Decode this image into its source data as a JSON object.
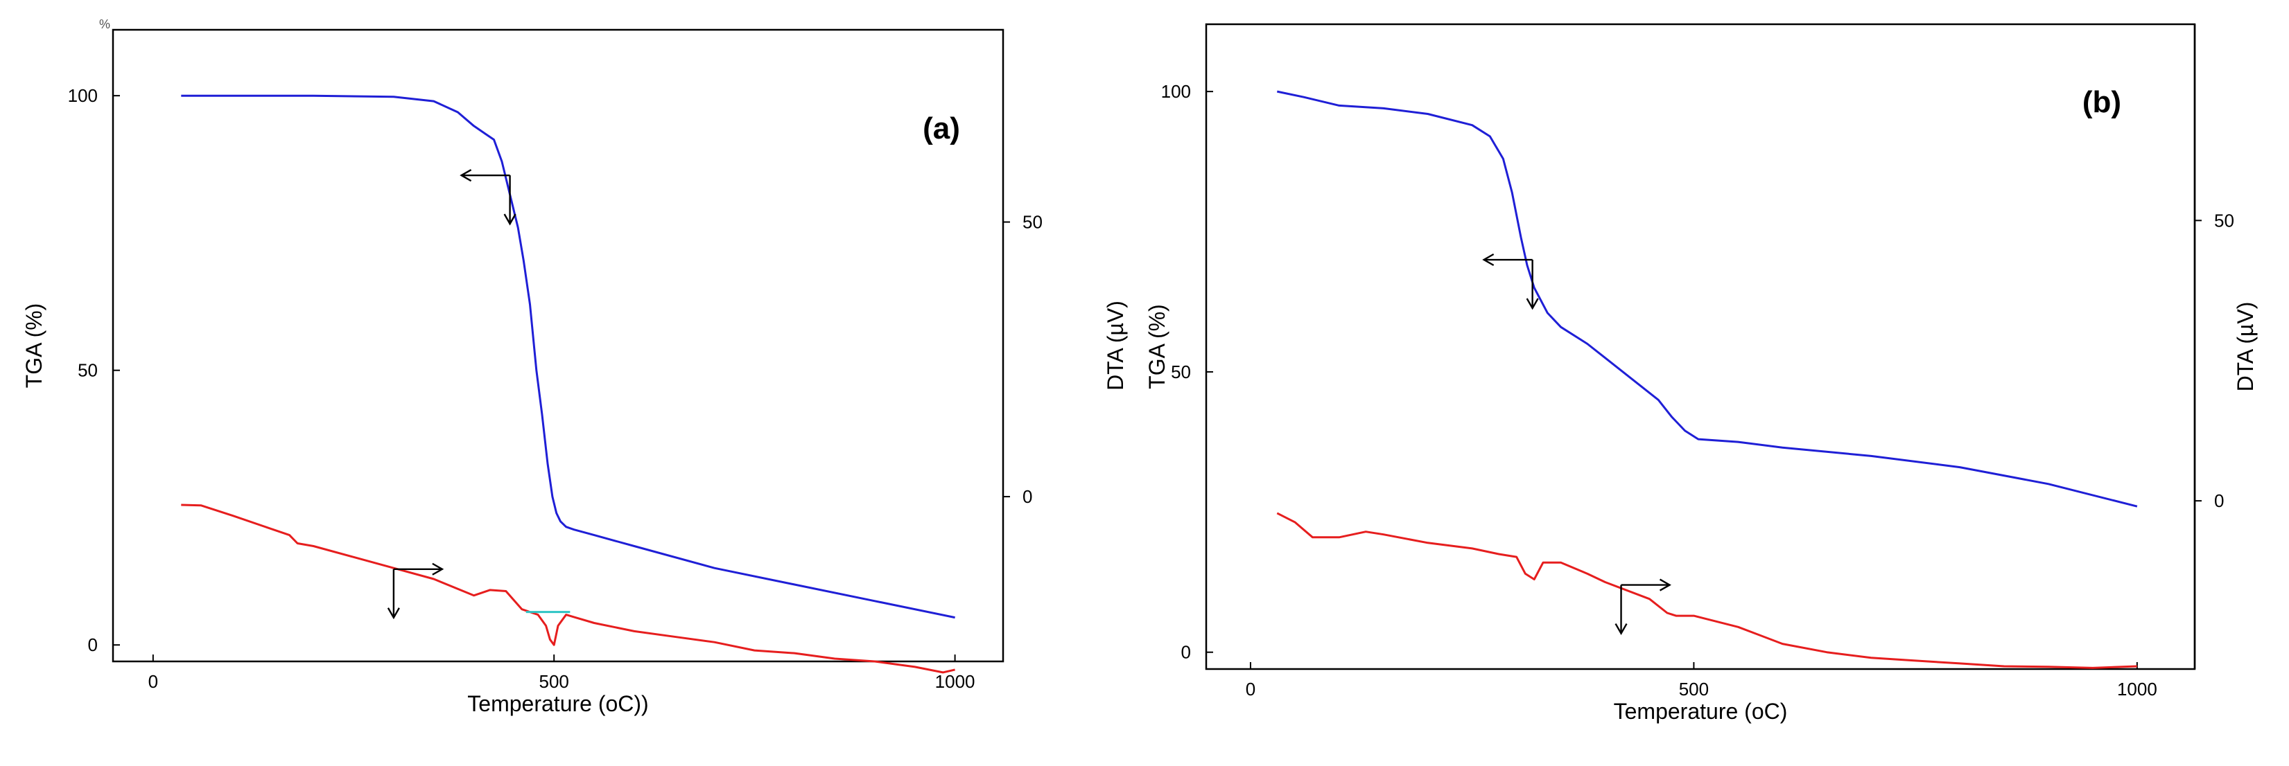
{
  "chart_data": [
    {
      "type": "line",
      "panel_label": "(a)",
      "xlabel": "Temperature (oC))",
      "ylabel": "TGA (%)",
      "y2label": "DTA (µV)",
      "top_left_mark": "%",
      "xlim": [
        -50,
        1060
      ],
      "ylim": [
        -3,
        112
      ],
      "y2lim": [
        -30,
        85
      ],
      "xticks": [
        0,
        500,
        1000
      ],
      "yticks": [
        0,
        50,
        100
      ],
      "y2ticks": [
        0,
        50
      ],
      "legend": "none",
      "grid": false,
      "series": [
        {
          "name": "TGA",
          "axis": "left",
          "color": "#1f1fd6",
          "x": [
            35,
            100,
            200,
            300,
            350,
            380,
            400,
            415,
            425,
            435,
            445,
            455,
            462,
            470,
            478,
            485,
            492,
            498,
            503,
            508,
            515,
            525,
            550,
            600,
            700,
            800,
            900,
            1000
          ],
          "y": [
            100,
            100,
            100,
            99.8,
            99,
            97,
            94.5,
            93,
            92,
            88,
            82,
            76,
            70,
            62,
            50,
            42,
            33,
            27,
            24,
            22.5,
            21.5,
            21,
            20,
            18,
            14,
            11,
            8,
            5
          ]
        },
        {
          "name": "DTA",
          "axis": "right",
          "color": "#e61e1e",
          "x": [
            35,
            60,
            100,
            150,
            170,
            180,
            200,
            250,
            300,
            350,
            400,
            420,
            440,
            460,
            480,
            490,
            495,
            500,
            505,
            515,
            550,
            600,
            650,
            700,
            750,
            800,
            850,
            900,
            950,
            985,
            1000
          ],
          "y": [
            -1.5,
            -1.6,
            -3.5,
            -6,
            -7,
            -8.5,
            -9,
            -11,
            -13,
            -15,
            -18,
            -17,
            -17.2,
            -20.5,
            -21.5,
            -23.5,
            -26,
            -27,
            -23.5,
            -21.5,
            -23,
            -24.5,
            -25.5,
            -26.5,
            -28,
            -28.5,
            -29.5,
            -30,
            -31,
            -32,
            -31.5
          ]
        }
      ],
      "annotations": [
        {
          "type": "axis-arrow",
          "series": "TGA",
          "points_to": "left axis"
        },
        {
          "type": "axis-arrow",
          "series": "DTA",
          "points_to": "right axis"
        },
        {
          "type": "baseline-segment",
          "color": "#2ec4c4",
          "x": [
            465,
            520
          ],
          "value": -21
        }
      ]
    },
    {
      "type": "line",
      "panel_label": "(b)",
      "xlabel": "Temperature (oC)",
      "ylabel": "TGA (%)",
      "y2label": "DTA (µV)",
      "xlim": [
        -50,
        1065
      ],
      "ylim": [
        -3,
        112
      ],
      "y2lim": [
        -30,
        85
      ],
      "xticks": [
        0,
        500,
        1000
      ],
      "yticks": [
        0,
        50,
        100
      ],
      "y2ticks": [
        0,
        50
      ],
      "legend": "none",
      "grid": false,
      "series": [
        {
          "name": "TGA",
          "axis": "left",
          "color": "#1f1fd6",
          "x": [
            30,
            60,
            100,
            150,
            200,
            250,
            270,
            285,
            295,
            305,
            312,
            320,
            335,
            350,
            380,
            400,
            420,
            440,
            460,
            475,
            490,
            505,
            550,
            600,
            700,
            800,
            900,
            1000
          ],
          "y": [
            100,
            99,
            97.5,
            97,
            96,
            94,
            92,
            88,
            82,
            74,
            69,
            65,
            60.5,
            58,
            55,
            52.5,
            50,
            47.5,
            45,
            42,
            39.5,
            38,
            37.5,
            36.5,
            35,
            33,
            30,
            26
          ]
        },
        {
          "name": "DTA",
          "axis": "right",
          "color": "#e61e1e",
          "x": [
            30,
            50,
            70,
            100,
            130,
            150,
            200,
            250,
            280,
            300,
            310,
            320,
            330,
            350,
            380,
            400,
            450,
            470,
            480,
            500,
            550,
            600,
            650,
            700,
            750,
            800,
            850,
            900,
            950,
            1000
          ],
          "y": [
            -2.2,
            -3.8,
            -6.5,
            -6.5,
            -5.5,
            -6,
            -7.5,
            -8.5,
            -9.5,
            -10,
            -13,
            -14,
            -11,
            -11,
            -13,
            -14.5,
            -17.5,
            -20,
            -20.5,
            -20.5,
            -22.5,
            -25.5,
            -27,
            -28,
            -28.5,
            -29,
            -29.5,
            -29.6,
            -29.8,
            -29.5
          ]
        }
      ],
      "annotations": [
        {
          "type": "axis-arrow",
          "series": "TGA",
          "points_to": "left axis"
        },
        {
          "type": "axis-arrow",
          "series": "DTA",
          "points_to": "right axis"
        }
      ]
    }
  ]
}
